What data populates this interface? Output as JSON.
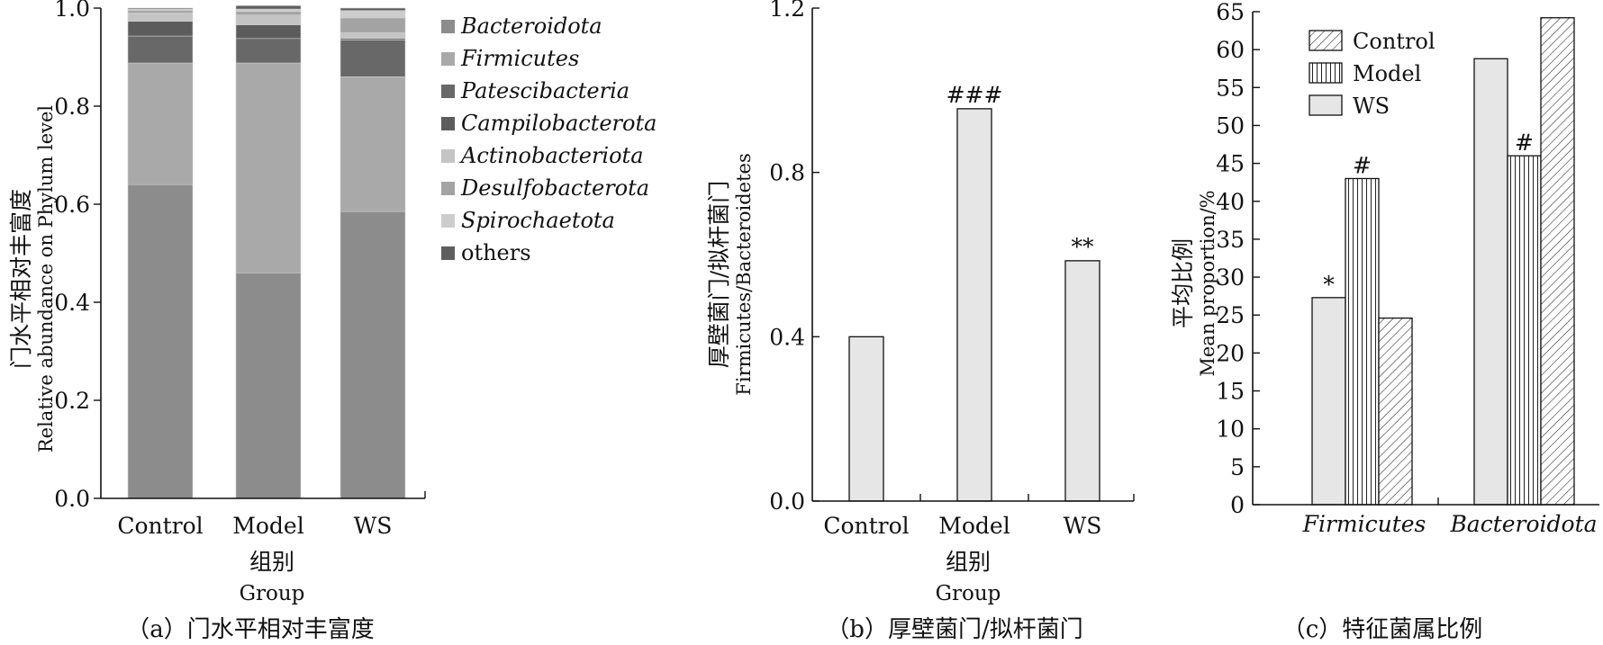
{
  "chart_data": [
    {
      "type": "bar",
      "stacked": true,
      "caption": "（a）门水平相对丰富度",
      "ylabel_cn": "门水平相对丰富度",
      "ylabel_en": "Relative abundance on Phylum level",
      "xlabel_cn": "组别",
      "xlabel_en": "Group",
      "categories": [
        "Control",
        "Model",
        "WS"
      ],
      "ylim": [
        0,
        1.0
      ],
      "yticks": [
        "0.0",
        "0.2",
        "0.4",
        "0.6",
        "0.8",
        "1.0"
      ],
      "legend_position": "right",
      "series": [
        {
          "name": "Bacteroidota",
          "italic": true,
          "color": "#8c8c8c",
          "values": [
            0.64,
            0.46,
            0.585
          ]
        },
        {
          "name": "Firmicutes",
          "italic": true,
          "color": "#a9a9a9",
          "values": [
            0.248,
            0.428,
            0.275
          ]
        },
        {
          "name": "Patescibacteria",
          "italic": true,
          "color": "#686868",
          "values": [
            0.055,
            0.05,
            0.075
          ]
        },
        {
          "name": "Campilobacterota",
          "italic": true,
          "color": "#5c5c5c",
          "values": [
            0.03,
            0.028,
            0.003
          ]
        },
        {
          "name": "Actinobacteriota",
          "italic": true,
          "color": "#c4c4c4",
          "values": [
            0.017,
            0.02,
            0.012
          ]
        },
        {
          "name": "Desulfobacterota",
          "italic": true,
          "color": "#a3a3a3",
          "values": [
            0.005,
            0.007,
            0.03
          ]
        },
        {
          "name": "Spirochaetota",
          "italic": true,
          "color": "#cdcdcd",
          "values": [
            0.003,
            0.005,
            0.015
          ]
        },
        {
          "name": "others",
          "italic": false,
          "color": "#5e5e5e",
          "values": [
            0.002,
            0.007,
            0.005
          ]
        }
      ]
    },
    {
      "type": "bar",
      "caption": "（b）厚壁菌门/拟杆菌门",
      "ylabel_cn": "厚壁菌门/拟杆菌门",
      "ylabel_en": "Firmicutes/Bacteroidetes",
      "xlabel_cn": "组别",
      "xlabel_en": "Group",
      "categories": [
        "Control",
        "Model",
        "WS"
      ],
      "values": [
        0.4,
        0.955,
        0.585
      ],
      "annotations": [
        "",
        "###",
        "**"
      ],
      "ylim": [
        0,
        1.2
      ],
      "yticks": [
        "0.0",
        "0.4",
        "0.8",
        "1.2"
      ],
      "bar_color": "#e6e6e6"
    },
    {
      "type": "bar",
      "caption": "（c）特征菌属比例",
      "ylabel_cn": "平均比例",
      "ylabel_en": "Mean proportion/%",
      "categories": [
        "Firmicutes",
        "Bacteroidota"
      ],
      "ylim": [
        0,
        65
      ],
      "yticks": [
        "0",
        "5",
        "10",
        "15",
        "20",
        "25",
        "30",
        "35",
        "40",
        "45",
        "50",
        "55",
        "60",
        "65"
      ],
      "legend_position": "top-left",
      "legend": [
        "Control",
        "Model",
        "WS"
      ],
      "series": [
        {
          "name": "WS",
          "pattern": "solid",
          "values": [
            27.3,
            58.8
          ],
          "annotations": [
            "*",
            ""
          ]
        },
        {
          "name": "Model",
          "pattern": "vertical",
          "values": [
            43.0,
            46.0
          ],
          "annotations": [
            "#",
            "#"
          ]
        },
        {
          "name": "Control",
          "pattern": "diagonal",
          "values": [
            24.6,
            64.2
          ],
          "annotations": [
            "",
            ""
          ]
        }
      ]
    }
  ]
}
